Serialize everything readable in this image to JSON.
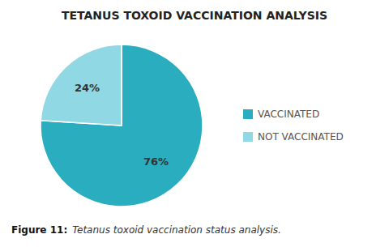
{
  "chart_data": {
    "type": "pie",
    "title": "TETANUS TOXOID VACCINATION ANALYSIS",
    "categories": [
      "VACCINATED",
      "NOT VACCINATED"
    ],
    "values": [
      76,
      24
    ],
    "value_labels": [
      "76%",
      "24%"
    ],
    "data_labels": true,
    "colors": [
      "#29adbf",
      "#90d8e3"
    ],
    "legend": "right",
    "annotations": [
      "Figure 11:",
      "Tetanus toxoid vaccination status analysis."
    ]
  }
}
